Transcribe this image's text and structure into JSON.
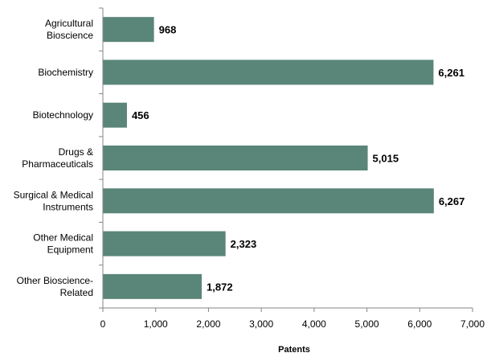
{
  "chart_data": {
    "type": "bar",
    "orientation": "horizontal",
    "title": "",
    "xlabel": "Patents",
    "ylabel": "",
    "categories": [
      [
        "Agricultural",
        "Bioscience"
      ],
      [
        "Biochemistry"
      ],
      [
        "Biotechnology"
      ],
      [
        "Drugs &",
        "Pharmaceuticals"
      ],
      [
        "Surgical & Medical",
        "Instruments"
      ],
      [
        "Other Medical",
        "Equipment"
      ],
      [
        "Other Bioscience-",
        "Related"
      ]
    ],
    "values": [
      968,
      6261,
      456,
      5015,
      6267,
      2323,
      1872
    ],
    "value_labels": [
      "968",
      "6,261",
      "456",
      "5,015",
      "6,267",
      "2,323",
      "1,872"
    ],
    "xlim": [
      0,
      7000
    ],
    "xticks": [
      0,
      1000,
      2000,
      3000,
      4000,
      5000,
      6000,
      7000
    ],
    "xtick_labels": [
      "0",
      "1,000",
      "2,000",
      "3,000",
      "4,000",
      "5,000",
      "6,000",
      "7,000"
    ],
    "grid": false,
    "legend": "none",
    "colors": {
      "bar": "#5a8579",
      "axis": "#868686"
    }
  }
}
